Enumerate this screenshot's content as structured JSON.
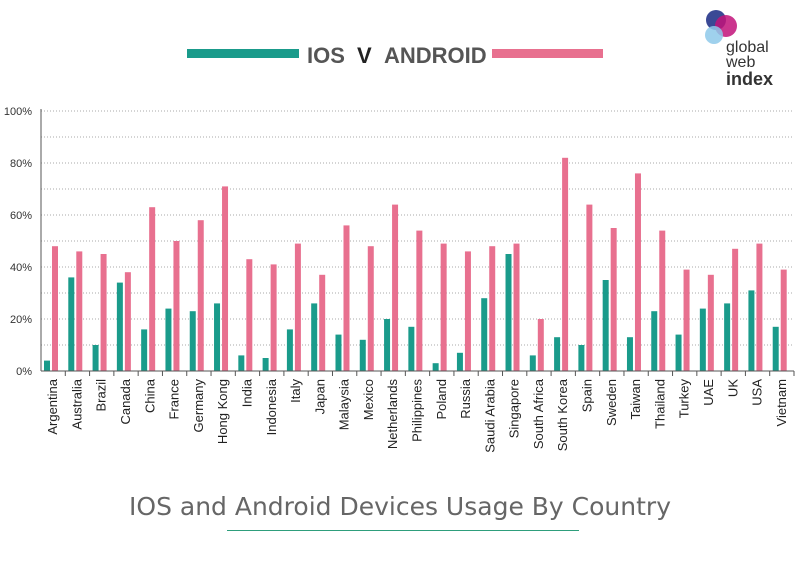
{
  "logo": {
    "line1": "global",
    "line2": "web",
    "line3": "index",
    "colors": [
      "#2f3f8f",
      "#c2137a",
      "#8ec9ea"
    ]
  },
  "legend": {
    "ios_label": "IOS",
    "separator": "V",
    "android_label": "ANDROID"
  },
  "caption": "IOS and Android Devices Usage By Country",
  "colors": {
    "ios": "#1a9b8b",
    "android": "#e8708f",
    "text": "#555555",
    "grid": "#bbbbbb"
  },
  "chart_data": {
    "type": "bar",
    "categories": [
      "Argentina",
      "Australia",
      "Brazil",
      "Canada",
      "China",
      "France",
      "Germany",
      "Hong Kong",
      "India",
      "Indonesia",
      "Italy",
      "Japan",
      "Malaysia",
      "Mexico",
      "Netherlands",
      "Philippines",
      "Poland",
      "Russia",
      "Saudi Arabia",
      "Singapore",
      "South Africa",
      "South Korea",
      "Spain",
      "Sweden",
      "Taiwan",
      "Thailand",
      "Turkey",
      "UAE",
      "UK",
      "USA",
      "Vietnam"
    ],
    "series": [
      {
        "name": "IOS",
        "values": [
          4,
          36,
          10,
          34,
          16,
          24,
          23,
          26,
          6,
          5,
          16,
          26,
          14,
          12,
          20,
          17,
          3,
          7,
          28,
          45,
          6,
          13,
          10,
          35,
          13,
          23,
          14,
          24,
          26,
          31,
          17
        ]
      },
      {
        "name": "ANDROID",
        "values": [
          48,
          46,
          45,
          38,
          63,
          50,
          58,
          71,
          43,
          41,
          49,
          37,
          56,
          48,
          64,
          54,
          49,
          46,
          48,
          49,
          20,
          82,
          64,
          55,
          76,
          54,
          39,
          37,
          47,
          49,
          39
        ]
      }
    ],
    "ylim": [
      0,
      100
    ],
    "yticks": [
      "0%",
      "20%",
      "40%",
      "60%",
      "80%",
      "100%"
    ],
    "grid": "dotted horizontal",
    "legend": "top-center"
  }
}
